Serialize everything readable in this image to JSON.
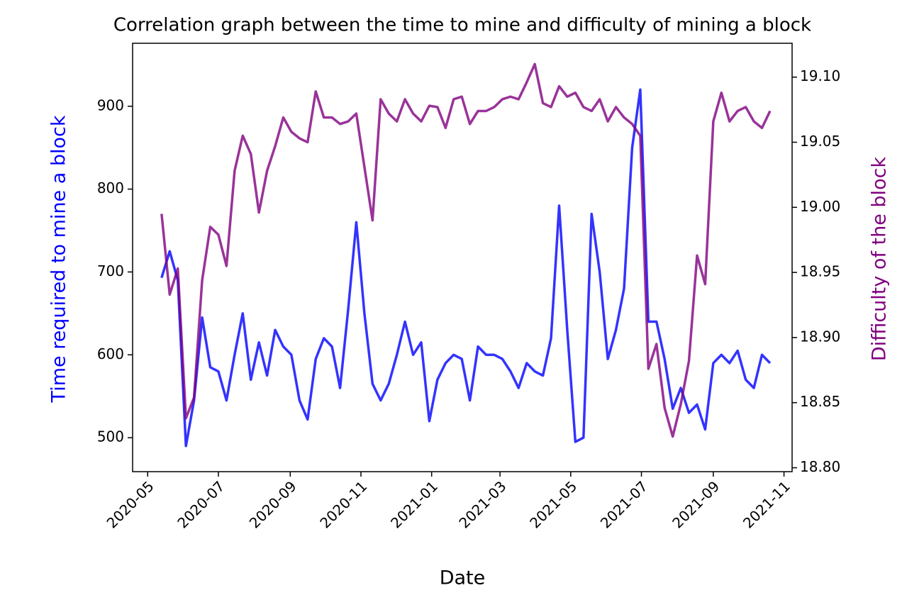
{
  "chart_data": {
    "type": "line",
    "title": "Correlation graph between the time to mine and difficulty of mining a block",
    "xlabel": "Date",
    "ylabel": "Time required to mine a block",
    "y2label": "Difficulty of the block",
    "ylabel_color": "#0000ff",
    "y2label_color": "#800080",
    "line_opacity": 0.8,
    "x": [
      "2020-05-13",
      "2020-05-20",
      "2020-05-27",
      "2020-06-03",
      "2020-06-10",
      "2020-06-17",
      "2020-06-24",
      "2020-07-01",
      "2020-07-08",
      "2020-07-15",
      "2020-07-22",
      "2020-07-29",
      "2020-08-05",
      "2020-08-12",
      "2020-08-19",
      "2020-08-26",
      "2020-09-02",
      "2020-09-09",
      "2020-09-16",
      "2020-09-23",
      "2020-09-30",
      "2020-10-07",
      "2020-10-14",
      "2020-10-21",
      "2020-10-28",
      "2020-11-04",
      "2020-11-11",
      "2020-11-18",
      "2020-11-25",
      "2020-12-02",
      "2020-12-09",
      "2020-12-16",
      "2020-12-23",
      "2020-12-30",
      "2021-01-06",
      "2021-01-13",
      "2021-01-20",
      "2021-01-27",
      "2021-02-03",
      "2021-02-10",
      "2021-02-17",
      "2021-02-24",
      "2021-03-03",
      "2021-03-10",
      "2021-03-17",
      "2021-03-24",
      "2021-03-31",
      "2021-04-07",
      "2021-04-14",
      "2021-04-21",
      "2021-04-28",
      "2021-05-05",
      "2021-05-12",
      "2021-05-19",
      "2021-05-26",
      "2021-06-02",
      "2021-06-09",
      "2021-06-16",
      "2021-06-23",
      "2021-06-30",
      "2021-07-07",
      "2021-07-14",
      "2021-07-21",
      "2021-07-28",
      "2021-08-04",
      "2021-08-11",
      "2021-08-18",
      "2021-08-25",
      "2021-09-01",
      "2021-09-08",
      "2021-09-15",
      "2021-09-22",
      "2021-09-29",
      "2021-10-06",
      "2021-10-13",
      "2021-10-20"
    ],
    "series": [
      {
        "color": "#0000ff",
        "values": [
          693,
          725,
          690,
          490,
          545,
          645,
          585,
          580,
          545,
          600,
          650,
          570,
          615,
          575,
          630,
          610,
          600,
          545,
          522,
          595,
          620,
          610,
          560,
          655,
          760,
          650,
          565,
          545,
          565,
          600,
          640,
          600,
          615,
          520,
          570,
          590,
          600,
          595,
          545,
          610,
          600,
          600,
          595,
          580,
          560,
          590,
          580,
          575,
          620,
          780,
          630,
          495,
          500,
          770,
          700,
          595,
          630,
          680,
          850,
          920,
          640,
          640,
          595,
          535,
          560,
          530,
          540,
          510,
          590,
          600,
          590,
          605,
          570,
          560,
          600,
          590
        ]
      },
      {
        "color": "#800080",
        "axis": "y2",
        "values": [
          18.995,
          18.933,
          18.953,
          18.838,
          18.854,
          18.944,
          18.985,
          18.979,
          18.955,
          19.028,
          19.055,
          19.041,
          18.996,
          19.028,
          19.047,
          19.069,
          19.058,
          19.053,
          19.05,
          19.089,
          19.069,
          19.069,
          19.064,
          19.066,
          19.072,
          19.031,
          18.99,
          19.083,
          19.072,
          19.066,
          19.083,
          19.072,
          19.066,
          19.078,
          19.077,
          19.061,
          19.083,
          19.085,
          19.064,
          19.074,
          19.074,
          19.077,
          19.083,
          19.085,
          19.083,
          19.096,
          19.11,
          19.08,
          19.077,
          19.093,
          19.085,
          19.088,
          19.077,
          19.074,
          19.083,
          19.066,
          19.077,
          19.069,
          19.064,
          19.055,
          18.876,
          18.895,
          18.846,
          18.824,
          18.849,
          18.882,
          18.963,
          18.941,
          19.066,
          19.088,
          19.066,
          19.074,
          19.077,
          19.066,
          19.061,
          19.074
        ]
      }
    ],
    "xlim": [
      "2020-04-18",
      "2021-11-08"
    ],
    "xticks": [
      {
        "value": "2020-05-01",
        "label": "2020-05"
      },
      {
        "value": "2020-07-01",
        "label": "2020-07"
      },
      {
        "value": "2020-09-01",
        "label": "2020-09"
      },
      {
        "value": "2020-11-01",
        "label": "2020-11"
      },
      {
        "value": "2021-01-01",
        "label": "2021-01"
      },
      {
        "value": "2021-03-01",
        "label": "2021-03"
      },
      {
        "value": "2021-05-01",
        "label": "2021-05"
      },
      {
        "value": "2021-07-01",
        "label": "2021-07"
      },
      {
        "value": "2021-09-01",
        "label": "2021-09"
      },
      {
        "value": "2021-11-01",
        "label": "2021-11"
      }
    ],
    "ylim": [
      459,
      976
    ],
    "yticks": [
      500,
      600,
      700,
      800,
      900
    ],
    "y2lim": [
      18.797,
      19.126
    ],
    "y2ticks": [
      {
        "value": 18.8,
        "label": "18.80"
      },
      18.85,
      {
        "value": 18.9,
        "label": "18.90"
      },
      18.95,
      {
        "value": 19.0,
        "label": "19.00"
      },
      19.05,
      {
        "value": 19.1,
        "label": "19.10"
      }
    ],
    "grid": false
  }
}
